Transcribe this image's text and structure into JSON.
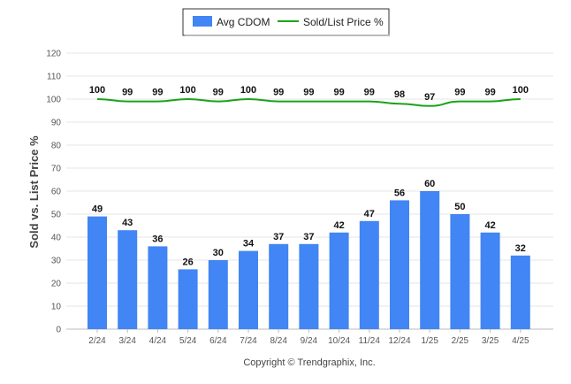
{
  "legend": {
    "bars_label": "Avg CDOM",
    "line_label": "Sold/List Price %"
  },
  "ylabel": "Sold vs. List Price %",
  "footer": "Copyright © Trendgraphix, Inc.",
  "colors": {
    "bar": "#4285f4",
    "line": "#1aa31a",
    "grid": "#e6e6e6",
    "axis": "#bbbbbb"
  },
  "chart_data": {
    "type": "bar",
    "categories": [
      "2/24",
      "3/24",
      "4/24",
      "5/24",
      "6/24",
      "7/24",
      "8/24",
      "9/24",
      "10/24",
      "11/24",
      "12/24",
      "1/25",
      "2/25",
      "3/25",
      "4/25"
    ],
    "series": [
      {
        "name": "Avg CDOM",
        "type": "bar",
        "values": [
          49,
          43,
          36,
          26,
          30,
          34,
          37,
          37,
          42,
          47,
          56,
          60,
          50,
          42,
          32
        ]
      },
      {
        "name": "Sold/List Price %",
        "type": "line",
        "values": [
          100,
          99,
          99,
          100,
          99,
          100,
          99,
          99,
          99,
          99,
          98,
          97,
          99,
          99,
          100
        ]
      }
    ],
    "ylabel": "Sold vs. List Price %",
    "ylim": [
      0,
      120
    ],
    "yticks": [
      0,
      10,
      20,
      30,
      40,
      50,
      60,
      70,
      80,
      90,
      100,
      110,
      120
    ],
    "grid": true,
    "legend_position": "top-center"
  }
}
